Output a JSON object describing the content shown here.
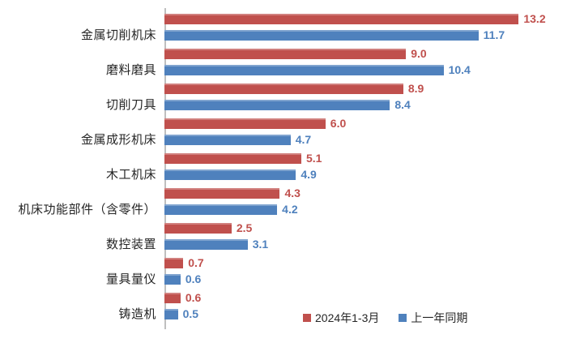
{
  "chart_data": {
    "type": "bar",
    "orientation": "horizontal",
    "title": "",
    "xlabel": "",
    "ylabel": "",
    "categories": [
      "金属切削机床",
      "磨料磨具",
      "切削刀具",
      "金属成形机床",
      "木工机床",
      "机床功能部件（含零件）",
      "数控装置",
      "量具量仪",
      "铸造机"
    ],
    "series": [
      {
        "name": "2024年1-3月",
        "color": "#C0504D",
        "label_color": "#C0504D",
        "values": [
          13.2,
          9.0,
          8.9,
          6.0,
          5.1,
          4.3,
          2.5,
          0.7,
          0.6
        ]
      },
      {
        "name": "上一年同期",
        "color": "#4F81BD",
        "label_color": "#4F81BD",
        "values": [
          11.7,
          10.4,
          8.4,
          4.7,
          4.9,
          4.2,
          3.1,
          0.6,
          0.5
        ]
      }
    ],
    "xlim": [
      0,
      15
    ],
    "grid": false,
    "value_labels": true,
    "value_decimals": 1,
    "legend_position": "bottom-center",
    "axis_line_color": "#BFBFBF",
    "background": "#FFFFFF"
  }
}
